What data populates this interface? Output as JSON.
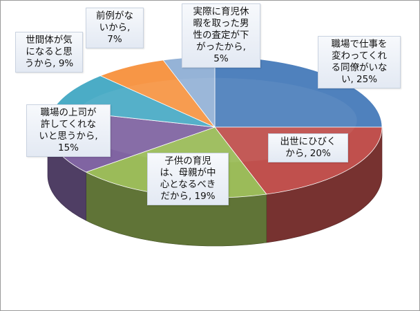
{
  "chart_data": {
    "type": "pie",
    "style": "3d",
    "slices": [
      {
        "label": "職場で仕事を変わってくれる同僚がいない",
        "value": 25,
        "display": "職場で仕事を変わってくれる同僚がいない, 25%",
        "color": "#4F81BD"
      },
      {
        "label": "出世にひびくから",
        "value": 20,
        "display": "出世にひびくから, 20%",
        "color": "#C0504D"
      },
      {
        "label": "子供の育児は、母親が中心となるべきだから",
        "value": 19,
        "display": "子供の育児は、母親が中心となるべきだから, 19%",
        "color": "#9BBB59"
      },
      {
        "label": "職場の上司が許してくれないと思うから",
        "value": 15,
        "display": "職場の上司が許してくれないと思うから, 15%",
        "color": "#8064A2"
      },
      {
        "label": "世間体が気になると思うから",
        "value": 9,
        "display": "世間体が気になると思うから, 9%",
        "color": "#4BACC6"
      },
      {
        "label": "前例がないから",
        "value": 7,
        "display": "前例がないから, 7%",
        "color": "#F79646"
      },
      {
        "label": "実際に育児休暇を取った男性の査定が下がったから",
        "value": 5,
        "display": "実際に育児休暇を取った男性の査定が下がったから, 5%",
        "color": "#95B3D7"
      }
    ]
  },
  "labels": [
    {
      "lines": [
        "職場で仕事を",
        "変わってくれ",
        "る同僚がいな",
        "い, 25%"
      ]
    },
    {
      "lines": [
        "出世にひびく",
        "から, 20%"
      ]
    },
    {
      "lines": [
        "子供の育児",
        "は、母親が中",
        "心となるべき",
        "だから, 19%"
      ]
    },
    {
      "lines": [
        "職場の上司が",
        "許してくれな",
        "いと思うから,",
        "15%"
      ]
    },
    {
      "lines": [
        "世間体が気",
        "になると思",
        "うから, 9%"
      ]
    },
    {
      "lines": [
        "前例がな",
        "いから,",
        "7%"
      ]
    },
    {
      "lines": [
        "実際に育児休",
        "暇を取った男",
        "性の査定が下",
        "がったから,",
        "5%"
      ]
    }
  ]
}
